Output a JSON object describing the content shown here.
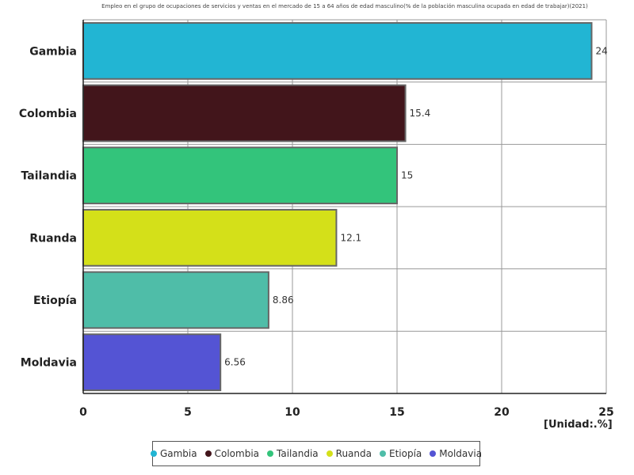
{
  "chart_data": {
    "type": "bar",
    "orientation": "horizontal",
    "title": "Empleo en el grupo de ocupaciones de servicios y ventas en el mercado de 15 a 64 años de edad masculino(% de la población masculina ocupada en edad de trabajar)(2021)",
    "categories": [
      "Gambia",
      "Colombia",
      "Tailandia",
      "Ruanda",
      "Etiopía",
      "Moldavia"
    ],
    "values": [
      24.3,
      15.4,
      15,
      12.1,
      8.86,
      6.56
    ],
    "value_labels": [
      "24",
      "15.4",
      "15",
      "12.1",
      "8.86",
      "6.56"
    ],
    "colors": [
      "#22b5d3",
      "#42151b",
      "#33c47b",
      "#d4e019",
      "#4fbda8",
      "#5454d4"
    ],
    "xlim": [
      0,
      25
    ],
    "xticks": [
      "0",
      "5",
      "10",
      "15",
      "20",
      "25"
    ],
    "unit": "[Unidad:.%]",
    "grid": true,
    "legend_position": "bottom"
  }
}
